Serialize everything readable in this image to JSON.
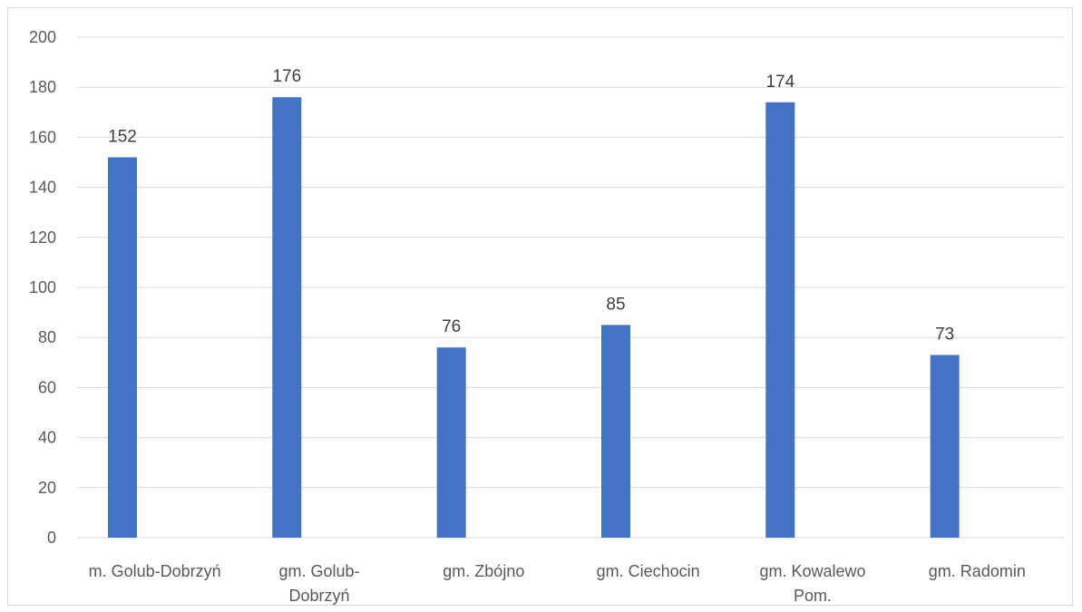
{
  "chart_data": {
    "type": "bar",
    "title": "",
    "xlabel": "",
    "ylabel": "",
    "categories": [
      [
        "m. Golub-Dobrzyń"
      ],
      [
        "gm. Golub-",
        "Dobrzyń"
      ],
      [
        "gm. Zbójno"
      ],
      [
        "gm. Ciechocin"
      ],
      [
        "gm. Kowalewo",
        "Pom."
      ],
      [
        "gm. Radomin"
      ]
    ],
    "values": [
      152,
      176,
      76,
      85,
      174,
      73
    ],
    "ylim": [
      0,
      200
    ],
    "yticks": [
      0,
      20,
      40,
      60,
      80,
      100,
      120,
      140,
      160,
      180,
      200
    ],
    "grid": true,
    "legend": "none",
    "bar_color": "#4472c4"
  }
}
